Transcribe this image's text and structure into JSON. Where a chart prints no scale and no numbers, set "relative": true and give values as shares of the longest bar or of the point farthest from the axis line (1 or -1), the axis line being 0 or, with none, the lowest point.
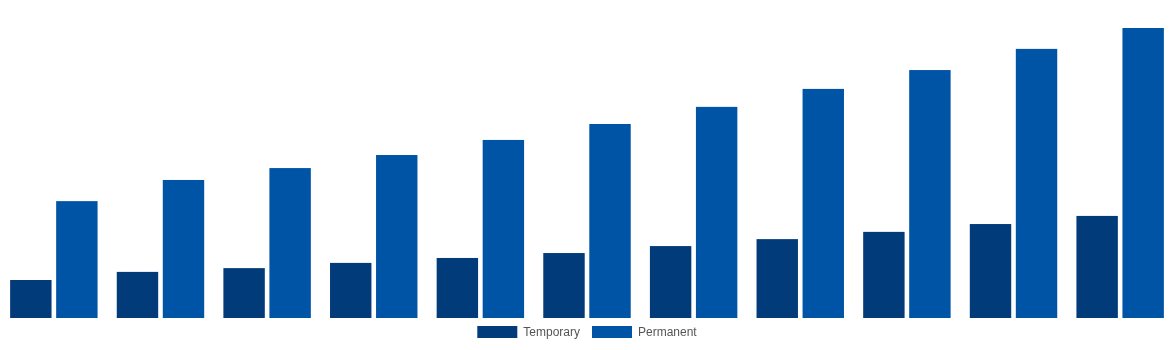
{
  "chart_data": {
    "type": "bar",
    "relative": true,
    "legend": "bottom",
    "categories": [
      null,
      null,
      null,
      null,
      null,
      null,
      null,
      null,
      null,
      null,
      null
    ],
    "series": [
      {
        "name": "Temporary",
        "color": "#023b7a",
        "values": [
          0.131,
          0.159,
          0.172,
          0.19,
          0.207,
          0.224,
          0.248,
          0.272,
          0.297,
          0.324,
          0.352
        ]
      },
      {
        "name": "Permanent",
        "color": "#0054a6",
        "values": [
          0.403,
          0.476,
          0.517,
          0.562,
          0.614,
          0.669,
          0.728,
          0.79,
          0.855,
          0.928,
          1
        ]
      }
    ]
  }
}
